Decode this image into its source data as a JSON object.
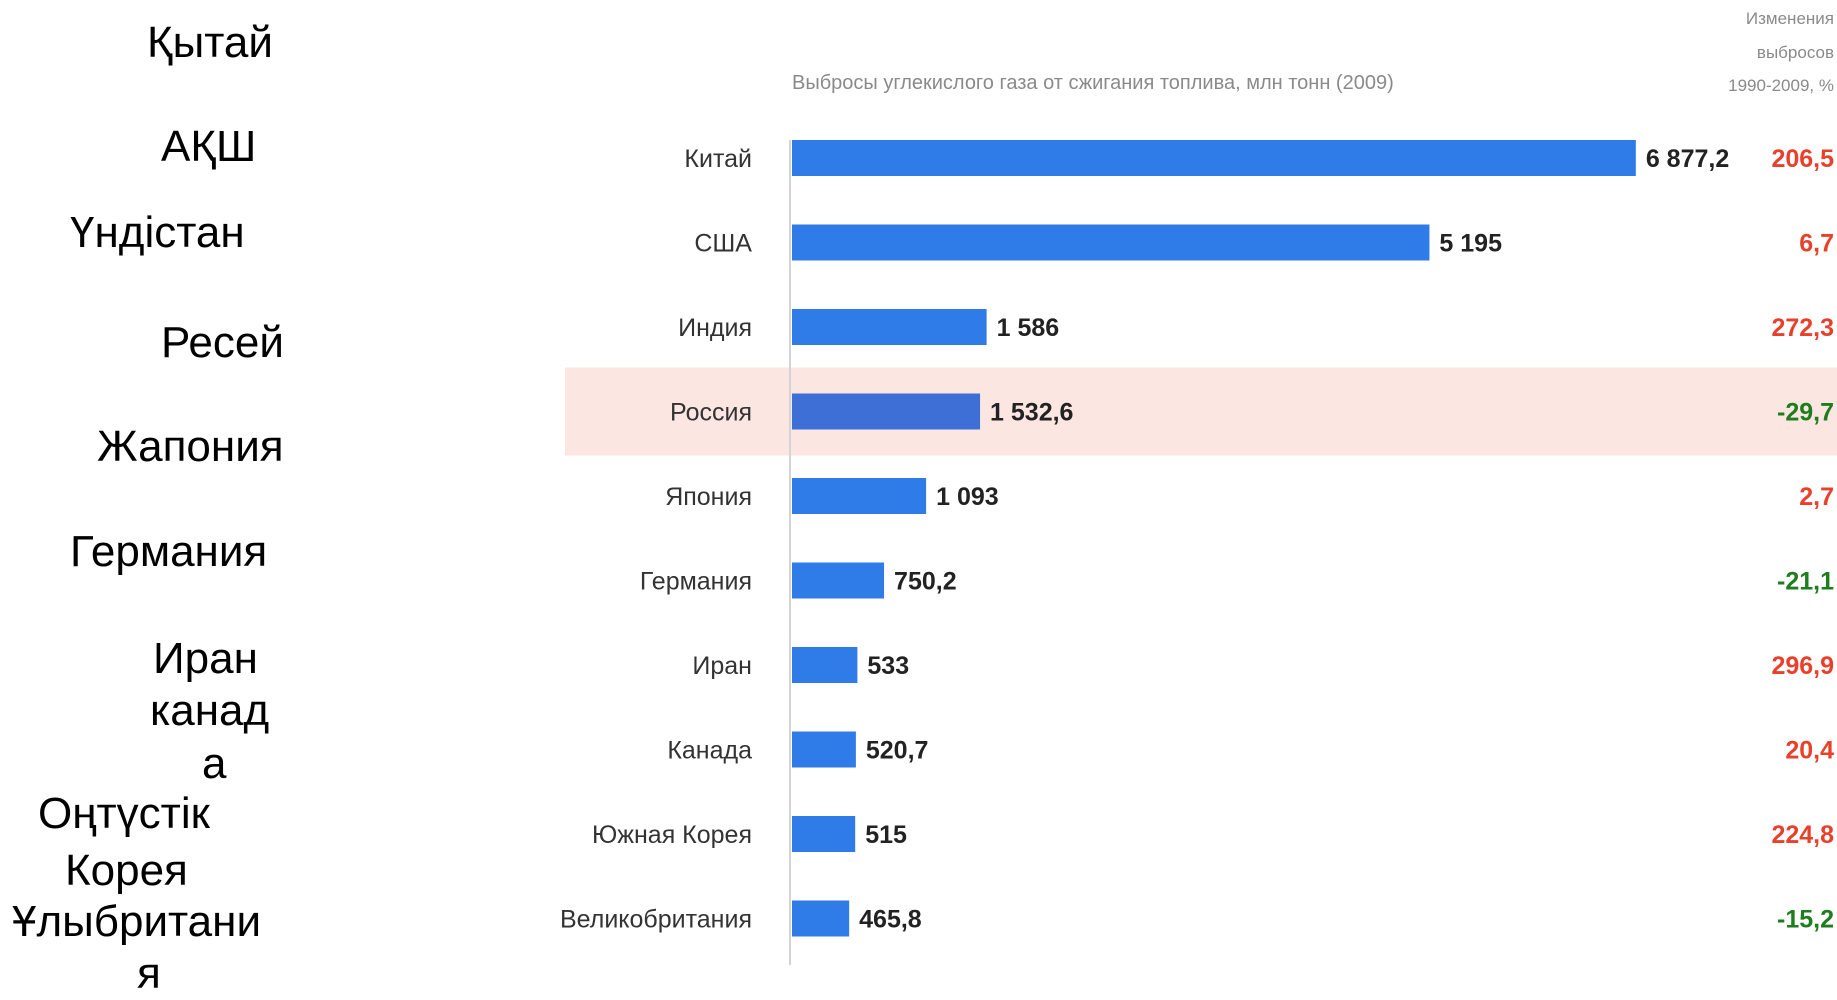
{
  "kazakh_labels": [
    "Қытай",
    "АҚШ",
    "Үндістан",
    "Ресей",
    "Жапония",
    "Германия",
    "Иран",
    "канад",
    "а",
    "Оңтүстік",
    "Корея",
    "Ұлыбритани",
    "я"
  ],
  "chart_data": {
    "type": "bar",
    "orientation": "horizontal",
    "subtitle": "Выбросы углекислого газа от сжигания топлива, млн тонн (2009)",
    "change_header": [
      "Изменения",
      "выбросов",
      "1990-2009, %"
    ],
    "categories": [
      "Китай",
      "США",
      "Индия",
      "Россия",
      "Япония",
      "Германия",
      "Иран",
      "Канада",
      "Южная Корея",
      "Великобритания"
    ],
    "values": [
      6877.2,
      5195,
      1586,
      1532.6,
      1093,
      750.2,
      533,
      520.7,
      515,
      465.8
    ],
    "value_labels": [
      "6 877,2",
      "5 195",
      "1 586",
      "1 532,6",
      "1 093",
      "750,2",
      "533",
      "520,7",
      "515",
      "465,8"
    ],
    "changes": [
      206.5,
      6.7,
      272.3,
      -29.7,
      2.7,
      -21.1,
      296.9,
      20.4,
      224.8,
      -15.2
    ],
    "change_labels": [
      "206,5",
      "6,7",
      "272,3",
      "-29,7",
      "2,7",
      "-21,1",
      "296,9",
      "20,4",
      "224,8",
      "-15,2"
    ],
    "highlighted_category": "Россия",
    "colors": {
      "bar": "#2f7be8",
      "highlight_bar": "#3d6fd6",
      "highlight_band": "#fbe6e2",
      "positive_change": "#e8402a",
      "negative_change": "#1e7d1e"
    }
  }
}
